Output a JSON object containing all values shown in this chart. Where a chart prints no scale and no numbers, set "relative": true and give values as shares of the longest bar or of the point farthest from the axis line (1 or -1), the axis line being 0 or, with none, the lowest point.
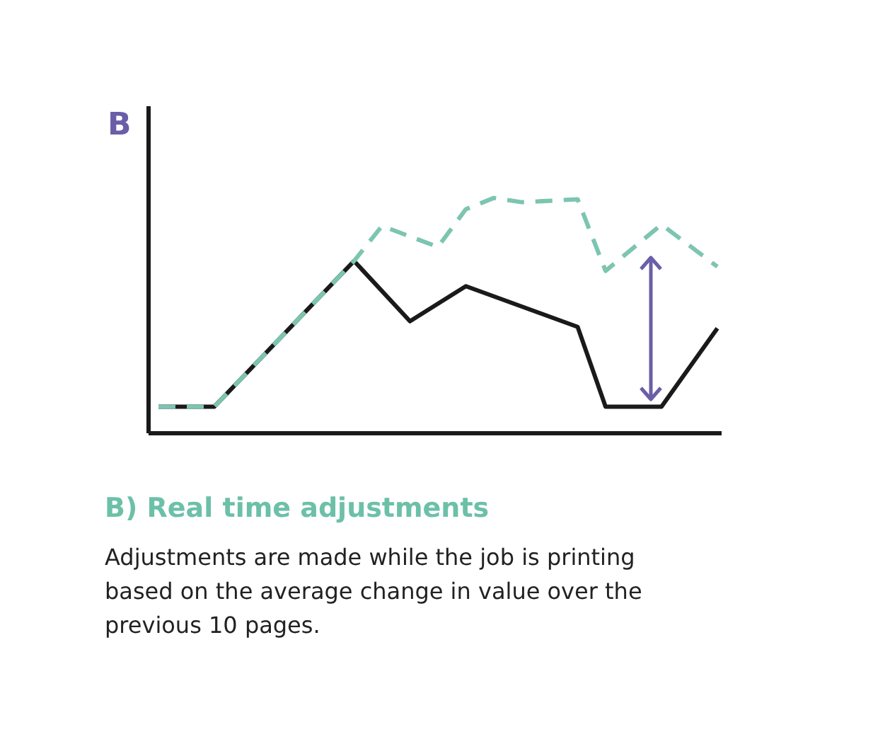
{
  "chart_data": {
    "type": "line",
    "relative": true,
    "ylabel": "B",
    "title": "B) Real time adjustments",
    "annotations": [
      "Adjustments are made while the job is printing based on the average change in value over the previous 10 pages."
    ],
    "categories": [
      null,
      null,
      null,
      null,
      null,
      null,
      null,
      null,
      null,
      null,
      null,
      null,
      null,
      null,
      null,
      null,
      null,
      null,
      null,
      null,
      null
    ],
    "series": [
      {
        "color": "#1a1a1a",
        "line_style": "solid",
        "values": [
          0.113,
          null,
          0.113,
          null,
          null,
          null,
          null,
          0.732,
          null,
          0.476,
          null,
          0.625,
          null,
          null,
          null,
          0.452,
          0.113,
          null,
          0.113,
          null,
          0.446
        ]
      },
      {
        "color": "#7cc5b0",
        "line_style": "dashed",
        "values": [
          0.113,
          null,
          0.113,
          null,
          null,
          null,
          null,
          0.732,
          0.881,
          null,
          0.792,
          0.952,
          1,
          0.982,
          null,
          0.994,
          0.69,
          null,
          0.887,
          null,
          0.708
        ]
      }
    ]
  }
}
